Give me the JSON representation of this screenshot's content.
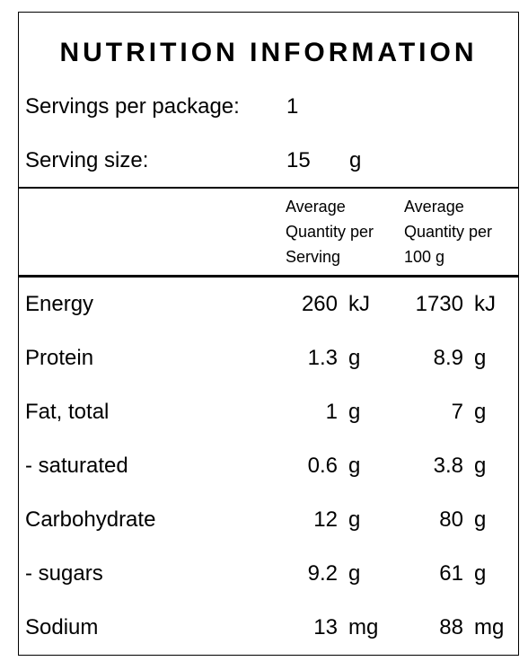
{
  "header": {
    "title": "NUTRITION INFORMATION"
  },
  "servings": {
    "label": "Servings per package:",
    "value": 1
  },
  "serving_size": {
    "label": "Serving size:",
    "value": 15,
    "unit": "g"
  },
  "table": {
    "columns": [
      "Average Quantity per Serving",
      "Average Quantity per 100 g"
    ],
    "rows": [
      {
        "name": "Energy",
        "per_serving": 260,
        "per_serving_unit": "kJ",
        "per_100g": 1730,
        "per_100g_unit": "kJ"
      },
      {
        "name": "Protein",
        "per_serving": 1.3,
        "per_serving_unit": "g",
        "per_100g": 8.9,
        "per_100g_unit": "g"
      },
      {
        "name": "Fat, total",
        "per_serving": 1,
        "per_serving_unit": "g",
        "per_100g": 7,
        "per_100g_unit": "g"
      },
      {
        "name": "- saturated",
        "per_serving": 0.6,
        "per_serving_unit": "g",
        "per_100g": 3.8,
        "per_100g_unit": "g"
      },
      {
        "name": "Carbohydrate",
        "per_serving": 12,
        "per_serving_unit": "g",
        "per_100g": 80,
        "per_100g_unit": "g"
      },
      {
        "name": "- sugars",
        "per_serving": 9.2,
        "per_serving_unit": "g",
        "per_100g": 61,
        "per_100g_unit": "g"
      },
      {
        "name": "Sodium",
        "per_serving": 13,
        "per_serving_unit": "mg",
        "per_100g": 88,
        "per_100g_unit": "mg"
      }
    ]
  }
}
